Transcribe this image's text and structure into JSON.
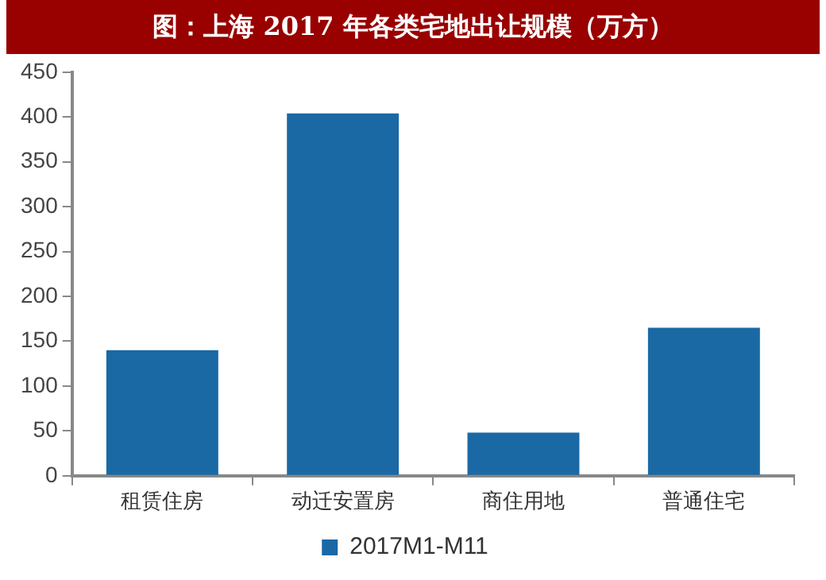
{
  "chart_data": {
    "type": "bar",
    "title": "图：上海 2017 年各类宅地出让规模（万方）",
    "categories": [
      "租赁住房",
      "动迁安置房",
      "商住用地",
      "普通住宅"
    ],
    "series": [
      {
        "name": "2017M1-M11",
        "color": "#1a69a5",
        "values": [
          140,
          404,
          48,
          165
        ]
      }
    ],
    "ylim": [
      0,
      450
    ],
    "yticks": [
      0,
      50,
      100,
      150,
      200,
      250,
      300,
      350,
      400,
      450
    ],
    "grid": false,
    "legend": "bottom"
  }
}
